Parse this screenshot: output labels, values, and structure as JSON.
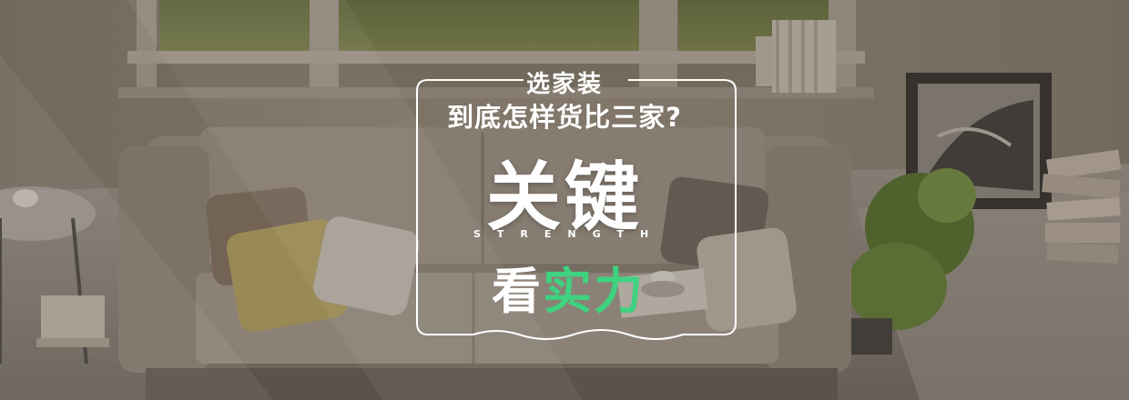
{
  "headline": {
    "line1": "选家装",
    "line2": "到底怎样货比三家?",
    "line3": "关键",
    "line4": "STRENGTH",
    "line5_white": "看",
    "line5_green": "实力"
  },
  "colors": {
    "frame": "#ffffff",
    "accent_green": "#3fd27f",
    "sofa": "#b9aea0",
    "wall": "#d8cdbd"
  }
}
